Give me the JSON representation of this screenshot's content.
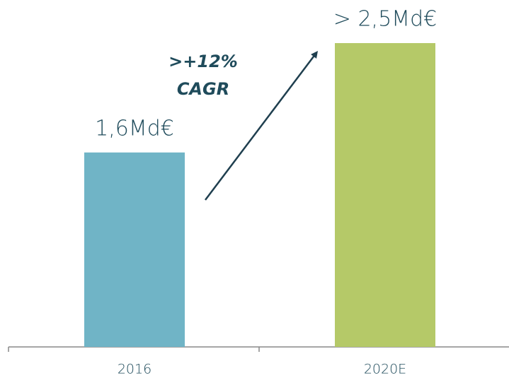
{
  "chart_data": {
    "type": "bar",
    "categories": [
      "2016",
      "2020E"
    ],
    "values": [
      1.6,
      2.5
    ],
    "value_labels": [
      "1,6Md€",
      "> 2,5Md€"
    ],
    "colors": [
      "#70b4c6",
      "#b5c968"
    ],
    "annotation": [
      ">+12%",
      "CAGR"
    ]
  }
}
